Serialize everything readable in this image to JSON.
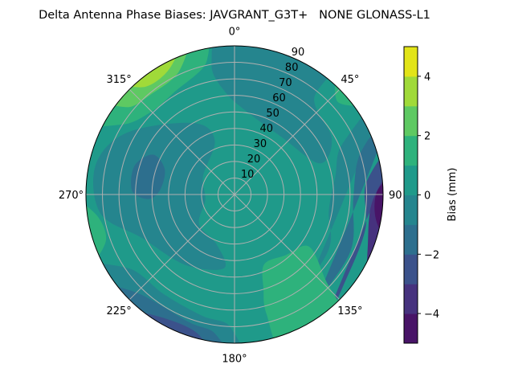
{
  "chart_data": {
    "type": "heatmap",
    "subtype": "polar-filled-contour",
    "title": "Delta Antenna Phase Biases: JAVGRANT_G3T+   NONE GLONASS-L1",
    "angular_axis": {
      "direction": "clockwise",
      "zero_location": "top",
      "tick_labels": [
        "0°",
        "45°",
        "90°",
        "135°",
        "180°",
        "225°",
        "270°",
        "315°"
      ],
      "ticks": [
        0,
        45,
        90,
        135,
        180,
        225,
        270,
        315
      ]
    },
    "radial_axis": {
      "range": [
        0,
        90
      ],
      "ticks": [
        10,
        20,
        30,
        40,
        50,
        60,
        70,
        80,
        90
      ],
      "tick_labels": [
        "10",
        "20",
        "30",
        "40",
        "50",
        "60",
        "70",
        "80",
        "90"
      ],
      "label_angle": 22.5
    },
    "grid": true,
    "colorbar": {
      "label": "Bias (mm)",
      "range": [
        -5,
        5
      ],
      "levels": [
        -5,
        -4,
        -3,
        -2,
        -1,
        0,
        1,
        2,
        3,
        4,
        5
      ],
      "ticks": [
        -4,
        -2,
        0,
        2,
        4
      ],
      "tick_labels": [
        "−4",
        "−2",
        "0",
        "2",
        "4"
      ],
      "colormap": "viridis",
      "band_colors": [
        "#481467",
        "#46327e",
        "#3b528b",
        "#2d6f8e",
        "#25858e",
        "#1f9a8a",
        "#2eb27c",
        "#5ec962",
        "#a0da39",
        "#e2e418"
      ],
      "placement": "right"
    },
    "background_level": 0,
    "regions": [
      {
        "level": -1,
        "points": [
          [
            -2,
            90
          ],
          [
            35,
            90
          ],
          [
            40,
            75
          ],
          [
            60,
            68
          ],
          [
            70,
            55
          ],
          [
            40,
            45
          ],
          [
            10,
            50
          ],
          [
            -5,
            62
          ],
          [
            -10,
            80
          ]
        ]
      },
      {
        "level": -1,
        "points": [
          [
            60,
            90
          ],
          [
            165,
            90
          ],
          [
            150,
            75
          ],
          [
            120,
            66
          ],
          [
            100,
            58
          ],
          [
            80,
            62
          ],
          [
            65,
            72
          ]
        ]
      },
      {
        "level": -2,
        "points": [
          [
            66,
            90
          ],
          [
            158,
            90
          ],
          [
            140,
            82
          ],
          [
            115,
            78
          ],
          [
            92,
            72
          ],
          [
            72,
            80
          ]
        ]
      },
      {
        "level": -3,
        "points": [
          [
            74,
            90
          ],
          [
            150,
            90
          ],
          [
            130,
            86
          ],
          [
            105,
            82
          ],
          [
            85,
            80
          ]
        ]
      },
      {
        "level": -4,
        "points": [
          [
            80,
            90
          ],
          [
            126,
            90
          ],
          [
            110,
            86
          ],
          [
            92,
            84
          ]
        ]
      },
      {
        "level": -5,
        "points": [
          [
            84,
            90
          ],
          [
            108,
            90
          ],
          [
            100,
            87
          ],
          [
            88,
            87
          ]
        ]
      },
      {
        "level": 1,
        "points": [
          [
            40,
            90
          ],
          [
            56,
            90
          ],
          [
            48,
            84
          ]
        ]
      },
      {
        "level": -1,
        "points": [
          [
            300,
            75
          ],
          [
            330,
            50
          ],
          [
            340,
            35
          ],
          [
            300,
            22
          ],
          [
            260,
            18
          ],
          [
            230,
            28
          ],
          [
            200,
            32
          ],
          [
            188,
            45
          ],
          [
            215,
            52
          ],
          [
            245,
            62
          ],
          [
            262,
            82
          ],
          [
            282,
            86
          ]
        ]
      },
      {
        "level": -2,
        "points": [
          [
            274,
            45
          ],
          [
            290,
            45
          ],
          [
            296,
            55
          ],
          [
            286,
            63
          ],
          [
            272,
            62
          ],
          [
            267,
            52
          ]
        ]
      },
      {
        "level": 1,
        "points": [
          [
            298,
            90
          ],
          [
            346,
            90
          ],
          [
            348,
            82
          ],
          [
            330,
            72
          ],
          [
            315,
            71
          ],
          [
            302,
            80
          ]
        ]
      },
      {
        "level": 2,
        "points": [
          [
            308,
            90
          ],
          [
            342,
            90
          ],
          [
            336,
            82
          ],
          [
            320,
            79
          ],
          [
            309,
            84
          ]
        ]
      },
      {
        "level": 3,
        "points": [
          [
            315,
            90
          ],
          [
            340,
            90
          ],
          [
            333,
            86
          ],
          [
            320,
            85
          ]
        ]
      },
      {
        "level": 1,
        "points": [
          [
            245,
            90
          ],
          [
            268,
            90
          ],
          [
            262,
            85
          ],
          [
            250,
            83
          ]
        ]
      },
      {
        "level": -1,
        "points": [
          [
            180,
            90
          ],
          [
            242,
            90
          ],
          [
            235,
            78
          ],
          [
            215,
            74
          ],
          [
            195,
            76
          ],
          [
            182,
            80
          ]
        ]
      },
      {
        "level": -2,
        "points": [
          [
            184,
            90
          ],
          [
            236,
            90
          ],
          [
            225,
            84
          ],
          [
            200,
            82
          ],
          [
            188,
            85
          ]
        ]
      },
      {
        "level": -3,
        "points": [
          [
            190,
            90
          ],
          [
            226,
            90
          ],
          [
            212,
            87
          ],
          [
            195,
            87
          ]
        ]
      },
      {
        "level": 1,
        "points": [
          [
            162,
            90
          ],
          [
            140,
            90
          ],
          [
            133,
            75
          ],
          [
            125,
            55
          ],
          [
            140,
            48
          ],
          [
            157,
            46
          ],
          [
            163,
            60
          ],
          [
            165,
            75
          ]
        ]
      }
    ]
  }
}
